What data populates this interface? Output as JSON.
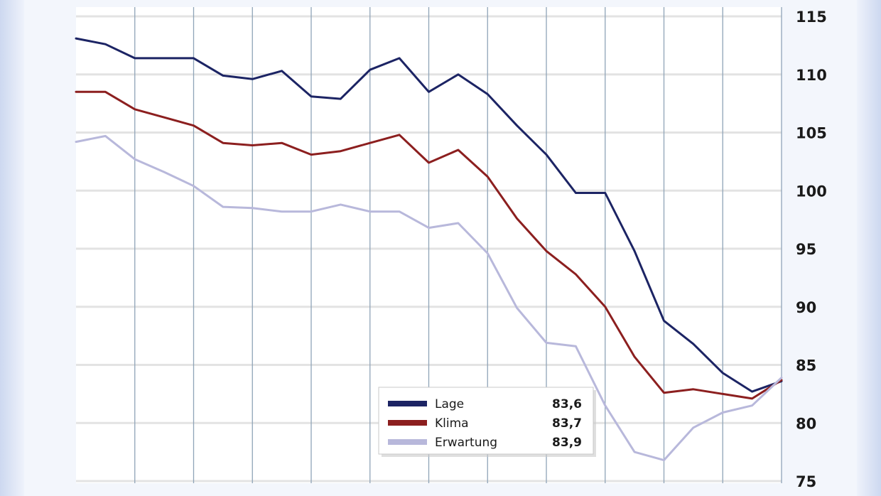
{
  "chart_data": {
    "type": "line",
    "ylim": [
      75,
      115.5
    ],
    "yticks": [
      115,
      110,
      105,
      100,
      95,
      90,
      85,
      80,
      75
    ],
    "ytick_labels": [
      "115",
      "110",
      "105",
      "100",
      "95",
      "90",
      "85",
      "80",
      "75"
    ],
    "y_axis_position": "right",
    "grid": true,
    "legend_position": "bottom-center",
    "x": [
      0,
      1,
      2,
      3,
      4,
      5,
      6,
      7,
      8,
      9,
      10,
      11,
      12,
      13,
      14,
      15,
      16,
      17,
      18,
      19,
      20,
      21,
      22,
      23,
      24
    ],
    "series": [
      {
        "name": "Lage",
        "color": "#1c2464",
        "legend_value": "83,6",
        "values": [
          113.1,
          112.6,
          111.4,
          111.4,
          111.4,
          109.9,
          109.6,
          110.3,
          108.1,
          107.9,
          110.4,
          111.4,
          108.5,
          110.0,
          108.3,
          105.6,
          103.1,
          99.8,
          99.8,
          94.8,
          88.8,
          86.8,
          84.3,
          82.7,
          83.6
        ]
      },
      {
        "name": "Klima",
        "color": "#8c1f1f",
        "legend_value": "83,7",
        "values": [
          108.5,
          108.5,
          107.0,
          106.3,
          105.6,
          104.1,
          103.9,
          104.1,
          103.1,
          103.4,
          104.1,
          104.8,
          102.4,
          103.5,
          101.2,
          97.6,
          94.8,
          92.8,
          90.0,
          85.7,
          82.6,
          82.9,
          82.5,
          82.1,
          83.7
        ]
      },
      {
        "name": "Erwartung",
        "color": "#b8b8db",
        "legend_value": "83,9",
        "values": [
          104.2,
          104.7,
          102.7,
          101.6,
          100.4,
          98.6,
          98.5,
          98.2,
          98.2,
          98.8,
          98.2,
          98.2,
          96.8,
          97.2,
          94.6,
          89.9,
          86.9,
          86.6,
          81.5,
          77.5,
          76.8,
          79.6,
          80.9,
          81.5,
          83.9
        ]
      }
    ]
  }
}
